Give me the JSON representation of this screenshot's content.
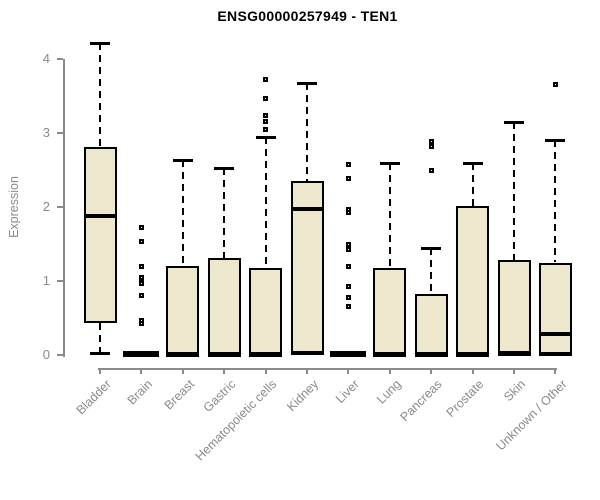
{
  "chart_data": {
    "type": "boxplot",
    "title": "ENSG00000257949 - TEN1",
    "ylabel": "Expression",
    "xlabel": "",
    "ylim": [
      0,
      4
    ],
    "yticks": [
      0,
      1,
      2,
      3,
      4
    ],
    "grid": false,
    "legend": false,
    "categories": [
      "Bladder",
      "Brain",
      "Breast",
      "Gastric",
      "Hematopoietic cells",
      "Kidney",
      "Liver",
      "Lung",
      "Pancreas",
      "Prostate",
      "Skin",
      "Unknown / Other"
    ],
    "boxes": [
      {
        "label": "Bladder",
        "whisker_low": 0.02,
        "q1": 0.43,
        "median": 1.88,
        "q3": 2.81,
        "whisker_high": 4.22,
        "outliers": []
      },
      {
        "label": "Brain",
        "whisker_low": 0.0,
        "q1": 0.0,
        "median": 0.01,
        "q3": 0.01,
        "whisker_high": 0.01,
        "outliers": [
          1.72,
          1.53,
          1.19,
          1.05,
          1.0,
          0.97,
          0.81,
          0.46,
          0.42
        ]
      },
      {
        "label": "Breast",
        "whisker_low": 0.0,
        "q1": 0.0,
        "median": 0.02,
        "q3": 1.2,
        "whisker_high": 2.64,
        "outliers": []
      },
      {
        "label": "Gastric",
        "whisker_low": 0.0,
        "q1": 0.0,
        "median": 0.02,
        "q3": 1.31,
        "whisker_high": 2.53,
        "outliers": []
      },
      {
        "label": "Hematopoietic cells",
        "whisker_low": 0.0,
        "q1": 0.0,
        "median": 0.02,
        "q3": 1.18,
        "whisker_high": 2.95,
        "outliers": [
          3.72,
          3.47,
          3.24,
          3.16,
          3.05
        ]
      },
      {
        "label": "Kidney",
        "whisker_low": 0.02,
        "q1": 0.03,
        "median": 1.97,
        "q3": 2.35,
        "whisker_high": 3.68,
        "outliers": []
      },
      {
        "label": "Liver",
        "whisker_low": 0.0,
        "q1": 0.0,
        "median": 0.01,
        "q3": 0.01,
        "whisker_high": 0.01,
        "outliers": [
          2.58,
          2.39,
          1.96,
          1.92,
          1.5,
          1.42,
          1.2,
          0.92,
          0.78,
          0.66
        ]
      },
      {
        "label": "Lung",
        "whisker_low": 0.0,
        "q1": 0.0,
        "median": 0.02,
        "q3": 1.17,
        "whisker_high": 2.6,
        "outliers": []
      },
      {
        "label": "Pancreas",
        "whisker_low": 0.0,
        "q1": 0.0,
        "median": 0.02,
        "q3": 0.82,
        "whisker_high": 1.45,
        "outliers": [
          2.89,
          2.82,
          2.5
        ]
      },
      {
        "label": "Prostate",
        "whisker_low": 0.0,
        "q1": 0.0,
        "median": 0.02,
        "q3": 2.01,
        "whisker_high": 2.6,
        "outliers": []
      },
      {
        "label": "Skin",
        "whisker_low": 0.0,
        "q1": 0.02,
        "median": 0.03,
        "q3": 1.28,
        "whisker_high": 3.15,
        "outliers": []
      },
      {
        "label": "Unknown / Other",
        "whisker_low": 0.0,
        "q1": 0.02,
        "median": 0.28,
        "q3": 1.25,
        "whisker_high": 2.91,
        "outliers": [
          3.66
        ]
      }
    ],
    "colors": {
      "box_fill": "#EDE8CD",
      "box_border": "#000000",
      "median": "#000000",
      "whisker": "#000000",
      "axis": "#8A8A8A",
      "axis_text": "#8A8A8A",
      "title_text": "#000000",
      "background": "#FFFFFF"
    }
  }
}
